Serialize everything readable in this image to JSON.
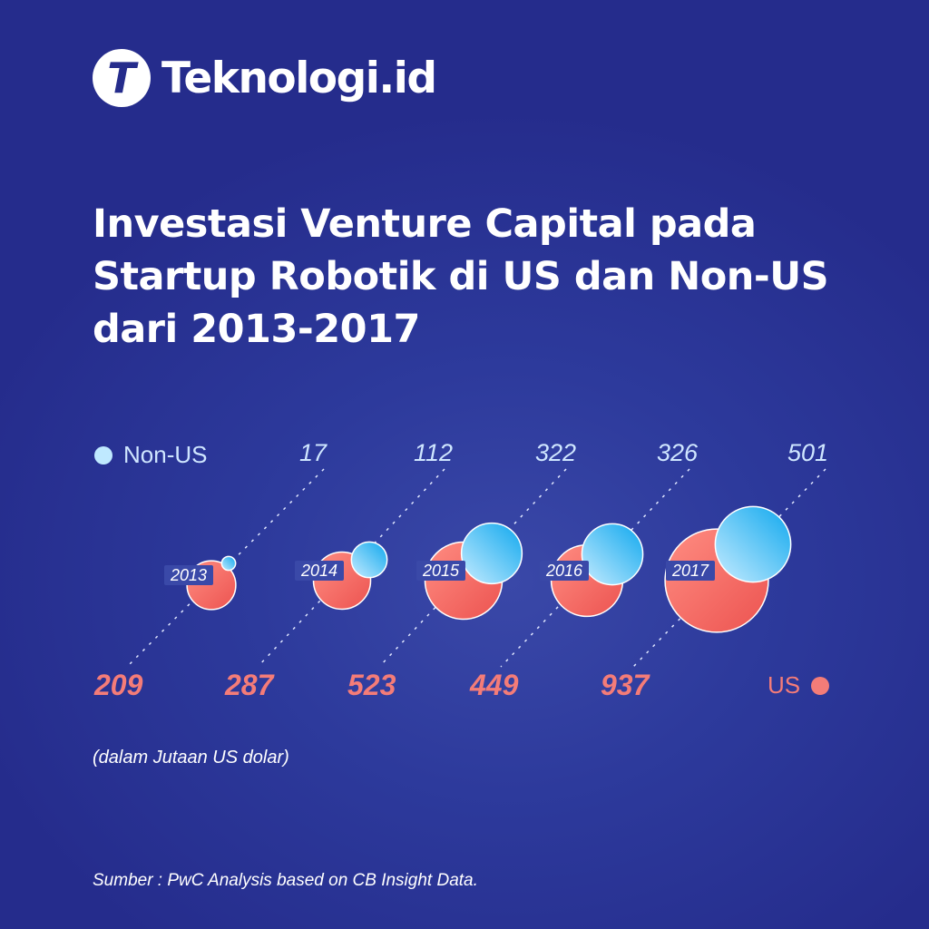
{
  "brand": {
    "logo_letter": "T",
    "name": "Teknologi.id"
  },
  "title_lines": [
    "Investasi Venture Capital pada",
    "Startup Robotik di US dan Non-US",
    "dari 2013-2017"
  ],
  "chart_data": {
    "type": "bubble",
    "title": "Investasi Venture Capital pada Startup Robotik di US dan Non-US dari 2013-2017",
    "categories": [
      "2013",
      "2014",
      "2015",
      "2016",
      "2017"
    ],
    "series": [
      {
        "name": "Non-US",
        "color": "#29b6f6",
        "values": [
          17,
          112,
          322,
          326,
          501
        ]
      },
      {
        "name": "US",
        "color": "#f0605a",
        "values": [
          209,
          287,
          523,
          449,
          937
        ]
      }
    ],
    "unit": "(dalam Jutaan US dolar)",
    "legend": [
      "top-left: Non-US",
      "bottom-right: US"
    ]
  },
  "source": "Sumber : PwC Analysis based on CB Insight Data."
}
